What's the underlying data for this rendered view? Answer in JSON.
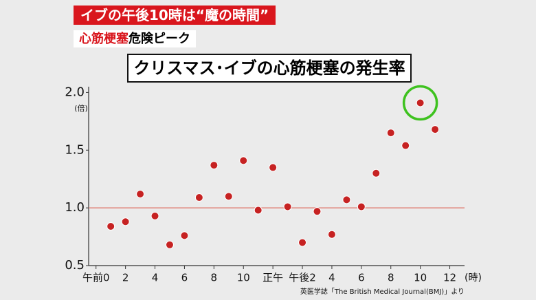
{
  "chart_data": {
    "type": "scatter",
    "banner": "イブの午後10時は“魔の時間”",
    "tag_highlight": "心筋梗塞",
    "tag_rest": "危険ピーク",
    "title": "クリスマス･イブの心筋梗塞の発生率",
    "y_unit": "(倍)",
    "x_unit": "(時)",
    "source": "英医学誌「The British Medical Journal(BMJ)」より",
    "x": [
      1,
      2,
      3,
      4,
      5,
      6,
      7,
      8,
      9,
      10,
      11,
      12,
      13,
      14,
      15,
      16,
      17,
      18,
      19,
      20,
      21,
      22,
      23
    ],
    "values": [
      0.84,
      0.88,
      1.12,
      0.93,
      0.68,
      0.76,
      1.09,
      1.37,
      1.1,
      1.41,
      0.98,
      1.35,
      1.01,
      0.7,
      0.97,
      0.77,
      1.07,
      1.01,
      1.3,
      1.65,
      1.54,
      1.91,
      1.68
    ],
    "color": "#c62222",
    "xlim": [
      -0.5,
      25
    ],
    "xticks": [
      {
        "value": 0,
        "label": "午前0"
      },
      2,
      4,
      6,
      8,
      10,
      {
        "value": 12,
        "label": "正午"
      },
      {
        "value": 14,
        "label": "午後2"
      },
      {
        "value": 16,
        "label": "4"
      },
      {
        "value": 18,
        "label": "6"
      },
      {
        "value": 20,
        "label": "8"
      },
      {
        "value": 22,
        "label": "10"
      },
      {
        "value": 24,
        "label": "12"
      }
    ],
    "ylim": [
      0.5,
      2.05
    ],
    "yticks": [
      0.5,
      {
        "value": 1,
        "label": "1.0"
      },
      1.5,
      {
        "value": 2,
        "label": "2.0"
      }
    ],
    "reference_line": {
      "value": 1,
      "color": "#e08a80"
    },
    "highlight": {
      "x": 22,
      "color": "#3ec21f"
    }
  }
}
